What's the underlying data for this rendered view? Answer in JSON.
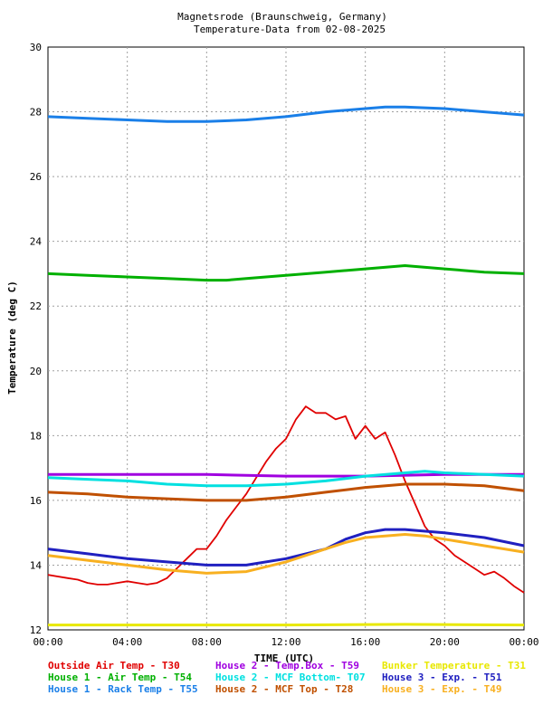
{
  "chart_data": {
    "type": "line",
    "title": "Magnetsrode (Braunschweig, Germany)",
    "subtitle": "Temperature-Data from 02-08-2025",
    "xlabel": "TIME (UTC)",
    "ylabel": "Temperature (deg C)",
    "xlim": [
      0,
      24
    ],
    "ylim": [
      12,
      30
    ],
    "xticks": [
      "00:00",
      "04:00",
      "08:00",
      "12:00",
      "16:00",
      "20:00",
      "00:00"
    ],
    "yticks": [
      "12",
      "14",
      "16",
      "18",
      "20",
      "22",
      "24",
      "26",
      "28",
      "30"
    ],
    "grid": true,
    "series": [
      {
        "name": "Outside Air Temp",
        "code": "T30",
        "color": "#e00000",
        "x": [
          0,
          1,
          1.5,
          2,
          2.5,
          3,
          3.5,
          4,
          4.5,
          5,
          5.5,
          6,
          6.5,
          7,
          7.5,
          8,
          8.5,
          9,
          9.5,
          10,
          10.5,
          11,
          11.5,
          12,
          12.5,
          13,
          13.5,
          14,
          14.5,
          15,
          15.5,
          16,
          16.5,
          17,
          17.5,
          18,
          18.5,
          19,
          19.5,
          20,
          20.5,
          21,
          21.5,
          22,
          22.5,
          23,
          23.5,
          24
        ],
        "y": [
          13.7,
          13.6,
          13.55,
          13.45,
          13.4,
          13.4,
          13.45,
          13.5,
          13.45,
          13.4,
          13.45,
          13.6,
          13.9,
          14.2,
          14.5,
          14.5,
          14.9,
          15.4,
          15.8,
          16.2,
          16.7,
          17.2,
          17.6,
          17.9,
          18.5,
          18.9,
          18.7,
          18.7,
          18.5,
          18.6,
          17.9,
          18.3,
          17.9,
          18.1,
          17.4,
          16.6,
          15.9,
          15.2,
          14.8,
          14.6,
          14.3,
          14.1,
          13.9,
          13.7,
          13.8,
          13.6,
          13.35,
          13.15
        ]
      },
      {
        "name": "House 1 - Air  Temp",
        "code": "T54",
        "color": "#00b000",
        "x": [
          0,
          2,
          4,
          6,
          8,
          9,
          10,
          12,
          14,
          16,
          18,
          20,
          22,
          24
        ],
        "y": [
          23.0,
          22.95,
          22.9,
          22.85,
          22.8,
          22.8,
          22.85,
          22.95,
          23.05,
          23.15,
          23.25,
          23.15,
          23.05,
          23.0
        ]
      },
      {
        "name": "House 1 - Rack Temp",
        "code": "T55",
        "color": "#1a7fe8",
        "x": [
          0,
          2,
          4,
          6,
          8,
          10,
          12,
          14,
          16,
          17,
          18,
          20,
          22,
          24
        ],
        "y": [
          27.85,
          27.8,
          27.75,
          27.7,
          27.7,
          27.75,
          27.85,
          28.0,
          28.1,
          28.15,
          28.15,
          28.1,
          28.0,
          27.9
        ]
      },
      {
        "name": "House 2 - Temp.Box",
        "code": "T59",
        "color": "#a000e0",
        "x": [
          0,
          4,
          8,
          12,
          16,
          20,
          24
        ],
        "y": [
          16.8,
          16.8,
          16.8,
          16.75,
          16.75,
          16.8,
          16.8
        ]
      },
      {
        "name": "House 2 - MCF Bottom",
        "code": "T07",
        "color": "#00e0e0",
        "x": [
          0,
          2,
          4,
          6,
          8,
          10,
          12,
          14,
          16,
          18,
          19,
          20,
          22,
          24
        ],
        "y": [
          16.7,
          16.65,
          16.6,
          16.5,
          16.45,
          16.45,
          16.5,
          16.6,
          16.75,
          16.85,
          16.9,
          16.85,
          16.8,
          16.75
        ]
      },
      {
        "name": "House 2 - MCF Top",
        "code": "T28",
        "color": "#c05000",
        "x": [
          0,
          2,
          4,
          6,
          8,
          10,
          12,
          14,
          16,
          18,
          20,
          22,
          24
        ],
        "y": [
          16.25,
          16.2,
          16.1,
          16.05,
          16.0,
          16.0,
          16.1,
          16.25,
          16.4,
          16.5,
          16.5,
          16.45,
          16.3
        ]
      },
      {
        "name": "House 3 - Exp.",
        "code": "T51",
        "color": "#2020c0",
        "x": [
          0,
          2,
          4,
          6,
          8,
          10,
          12,
          14,
          15,
          16,
          17,
          18,
          20,
          22,
          24
        ],
        "y": [
          14.5,
          14.35,
          14.2,
          14.1,
          14.0,
          14.0,
          14.2,
          14.5,
          14.8,
          15.0,
          15.1,
          15.1,
          15.0,
          14.85,
          14.6
        ]
      },
      {
        "name": "House 3 - Exp.",
        "code": "T49",
        "color": "#f8b020",
        "x": [
          0,
          2,
          4,
          6,
          8,
          10,
          12,
          14,
          15,
          16,
          17,
          18,
          19,
          20,
          22,
          24
        ],
        "y": [
          14.3,
          14.15,
          14.0,
          13.85,
          13.75,
          13.8,
          14.1,
          14.5,
          14.7,
          14.85,
          14.9,
          14.95,
          14.9,
          14.8,
          14.6,
          14.4
        ]
      },
      {
        "name": "Bunker Temperature",
        "code": "T31",
        "color": "#e8e800",
        "x": [
          0,
          6,
          12,
          18,
          24
        ],
        "y": [
          12.15,
          12.15,
          12.15,
          12.17,
          12.15
        ]
      }
    ],
    "legend": [
      [
        "Outside Air Temp     - T30",
        "House 2 - Temp.Box   - T59",
        "Bunker Temperature   - T31"
      ],
      [
        "House 1 - Air  Temp - T54",
        "House 2 - MCF Bottom- T07",
        "House 3 - Exp.       - T51"
      ],
      [
        "House 1 - Rack Temp - T55",
        "House 2 - MCF Top    - T28",
        "House 3 - Exp.       - T49"
      ]
    ],
    "legend_colors": [
      [
        "#e00000",
        "#a000e0",
        "#e8e800"
      ],
      [
        "#00b000",
        "#00e0e0",
        "#2020c0"
      ],
      [
        "#1a7fe8",
        "#c05000",
        "#f8b020"
      ]
    ],
    "legend_position": "bottom"
  }
}
